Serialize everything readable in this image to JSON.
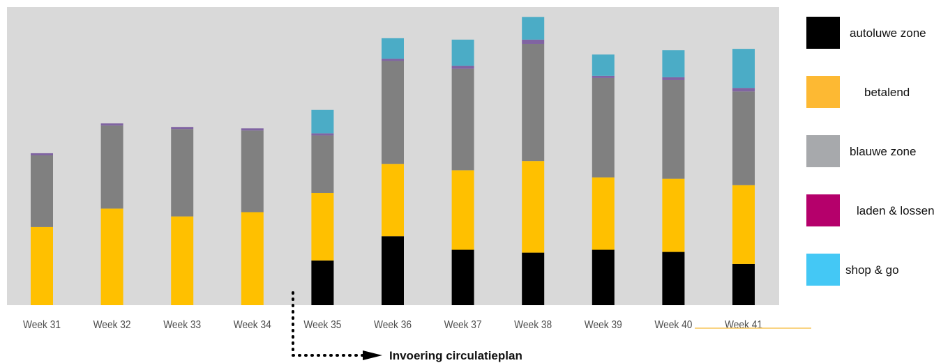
{
  "chart_data": {
    "type": "bar",
    "stacked": true,
    "categories": [
      "Week 31",
      "Week 32",
      "Week 33",
      "Week 34",
      "Week 35",
      "Week 36",
      "Week 37",
      "Week 38",
      "Week 39",
      "Week 40",
      "Week 41"
    ],
    "series": [
      {
        "name": "autoluwe zone",
        "color": "#000000",
        "values": [
          0,
          0,
          0,
          0,
          63,
          97,
          78,
          74,
          78,
          75,
          58
        ]
      },
      {
        "name": "betalend",
        "color": "#ffc000",
        "values": [
          110,
          136,
          125,
          131,
          95,
          102,
          112,
          129,
          102,
          103,
          111
        ]
      },
      {
        "name": "blauwe zone",
        "color": "#808080",
        "values": [
          101,
          117,
          123,
          115,
          81,
          145,
          143,
          165,
          140,
          139,
          132
        ]
      },
      {
        "name": "laden & lossen",
        "color": "#8064a2",
        "values": [
          3,
          3,
          3,
          3,
          3,
          3,
          4,
          6,
          3,
          4,
          5
        ]
      },
      {
        "name": "shop & go",
        "color": "#4bacc6",
        "values": [
          0,
          0,
          0,
          0,
          33,
          29,
          37,
          32,
          30,
          38,
          55
        ]
      }
    ],
    "legend_colors": {
      "autoluwe zone": "#000000",
      "betalend": "#fdb933",
      "blauwe zone": "#a7a9ac",
      "laden & lossen": "#b5006b",
      "shop & go": "#44c8f5"
    },
    "ylim": [
      0,
      420
    ],
    "grid": false,
    "plot_background": "#d9d9d9",
    "legend_position": "right",
    "annotation": {
      "text": "Invoering circulatieplan",
      "after_category": "Week 34"
    }
  }
}
